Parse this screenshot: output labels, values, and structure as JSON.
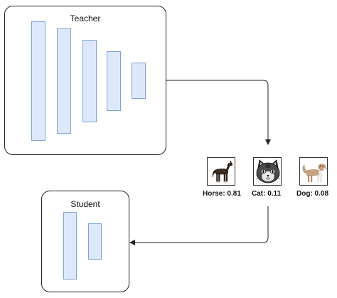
{
  "teacher": {
    "title": "Teacher",
    "layer_count": 5
  },
  "student": {
    "title": "Student",
    "layer_count": 2
  },
  "predictions": [
    {
      "label": "Horse: 0.81",
      "icon": "horse-icon"
    },
    {
      "label": "Cat: 0.11",
      "icon": "cat-icon"
    },
    {
      "label": "Dog: 0.08",
      "icon": "dog-icon"
    }
  ],
  "colors": {
    "layer_fill": "#dde9fb",
    "layer_stroke": "#7fa2d8",
    "line": "#222222"
  }
}
